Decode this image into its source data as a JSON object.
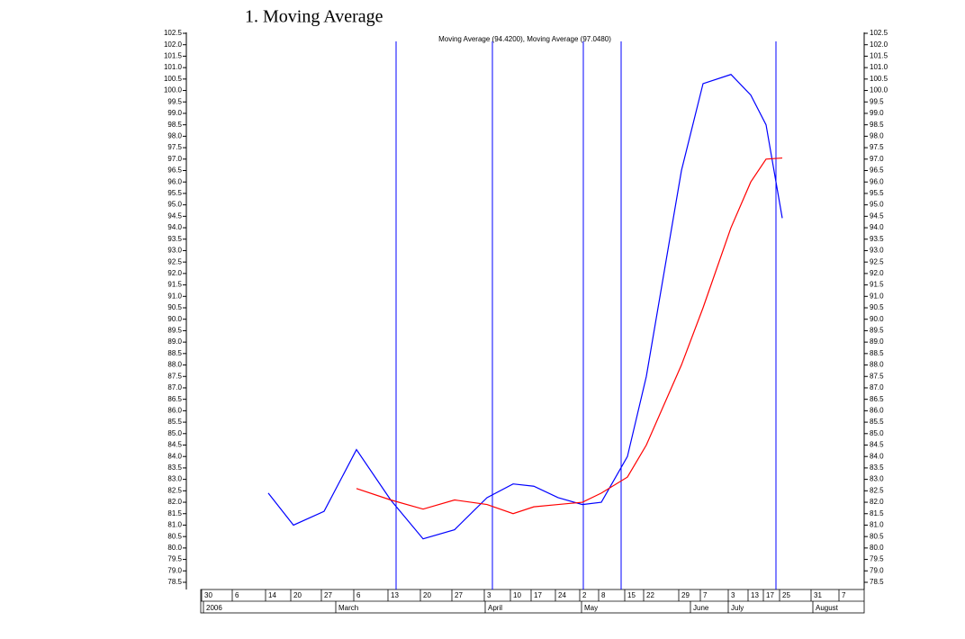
{
  "heading": "1.    Moving Average",
  "chart_data": {
    "type": "line",
    "title": "Moving Average (94.4200), Moving Average (97.0480)",
    "categories": [
      "30",
      "6",
      "14",
      "20",
      "27",
      "6",
      "13",
      "20",
      "27",
      "3",
      "10",
      "17",
      "24",
      "2",
      "8",
      "15",
      "22",
      "29",
      "7",
      "3",
      "13",
      "17",
      "25",
      "31",
      "7"
    ],
    "month_labels": [
      "2006",
      "March",
      "April",
      "May",
      "June",
      "July",
      "August"
    ],
    "series": [
      {
        "name": "Moving Average (94.4200)",
        "color": "#0000ff",
        "values": [
          null,
          null,
          82.4,
          81.0,
          81.6,
          84.3,
          82.1,
          80.4,
          80.8,
          82.2,
          82.8,
          82.7,
          82.2,
          81.9,
          82.0,
          84.0,
          87.5,
          96.5,
          100.3,
          100.7,
          99.8,
          98.5,
          94.42,
          null,
          null
        ]
      },
      {
        "name": "Moving Average (97.0480)",
        "color": "#ff0000",
        "values": [
          null,
          null,
          null,
          null,
          null,
          82.6,
          82.1,
          81.7,
          82.1,
          81.9,
          81.5,
          81.8,
          81.9,
          82.0,
          82.4,
          83.1,
          84.5,
          88.0,
          90.5,
          94.0,
          96.0,
          97.0,
          97.048,
          null,
          null
        ]
      }
    ],
    "ylim": [
      78.5,
      102.5
    ],
    "yticks": [
      78.5,
      {
        "value": 79,
        "label": "79.0"
      },
      79.5,
      {
        "value": 80,
        "label": "80.0"
      },
      80.5,
      {
        "value": 81,
        "label": "81.0"
      },
      81.5,
      {
        "value": 82,
        "label": "82.0"
      },
      82.5,
      {
        "value": 83,
        "label": "83.0"
      },
      83.5,
      {
        "value": 84,
        "label": "84.0"
      },
      84.5,
      {
        "value": 85,
        "label": "85.0"
      },
      85.5,
      {
        "value": 86,
        "label": "86.0"
      },
      86.5,
      {
        "value": 87,
        "label": "87.0"
      },
      87.5,
      {
        "value": 88,
        "label": "88.0"
      },
      88.5,
      {
        "value": 89,
        "label": "89.0"
      },
      89.5,
      {
        "value": 90,
        "label": "90.0"
      },
      90.5,
      {
        "value": 91,
        "label": "91.0"
      },
      91.5,
      {
        "value": 92,
        "label": "92.0"
      },
      92.5,
      {
        "value": 93,
        "label": "93.0"
      },
      93.5,
      {
        "value": 94,
        "label": "94.0"
      },
      94.5,
      {
        "value": 95,
        "label": "95.0"
      },
      95.5,
      {
        "value": 96,
        "label": "96.0"
      },
      96.5,
      {
        "value": 97,
        "label": "97.0"
      },
      97.5,
      {
        "value": 98,
        "label": "98.0"
      },
      98.5,
      {
        "value": 99,
        "label": "99.0"
      },
      99.5,
      {
        "value": 100,
        "label": "100.0"
      },
      100.5,
      {
        "value": 101,
        "label": "101.0"
      },
      101.5,
      {
        "value": 102,
        "label": "102.0"
      },
      102.5
    ],
    "y2lim": [
      78.5,
      102.5
    ],
    "y2ticks": [
      78.5,
      {
        "value": 79,
        "label": "79.0"
      },
      79.5,
      {
        "value": 80,
        "label": "80.0"
      },
      80.5,
      {
        "value": 81,
        "label": "81.0"
      },
      81.5,
      {
        "value": 82,
        "label": "82.0"
      },
      82.5,
      {
        "value": 83,
        "label": "83.0"
      },
      83.5,
      {
        "value": 84,
        "label": "84.0"
      },
      84.5,
      {
        "value": 85,
        "label": "85.0"
      },
      85.5,
      {
        "value": 86,
        "label": "86.0"
      },
      86.5,
      {
        "value": 87,
        "label": "87.0"
      },
      87.5,
      {
        "value": 88,
        "label": "88.0"
      },
      88.5,
      {
        "value": 89,
        "label": "89.0"
      },
      89.5,
      {
        "value": 90,
        "label": "90.0"
      },
      90.5,
      {
        "value": 91,
        "label": "91.0"
      },
      91.5,
      {
        "value": 92,
        "label": "92.0"
      },
      92.5,
      {
        "value": 93,
        "label": "93.0"
      },
      93.5,
      {
        "value": 94,
        "label": "94.0"
      },
      94.5,
      {
        "value": 95,
        "label": "95.0"
      },
      95.5,
      {
        "value": 96,
        "label": "96.0"
      },
      96.5,
      {
        "value": 97,
        "label": "97.0"
      },
      97.5,
      {
        "value": 98,
        "label": "98.0"
      },
      98.5,
      {
        "value": 99,
        "label": "99.0"
      },
      99.5,
      {
        "value": 100,
        "label": "100.0"
      },
      100.5,
      {
        "value": 101,
        "label": "101.0"
      },
      101.5,
      {
        "value": 102,
        "label": "102.0"
      },
      102.5
    ],
    "grid": false
  }
}
